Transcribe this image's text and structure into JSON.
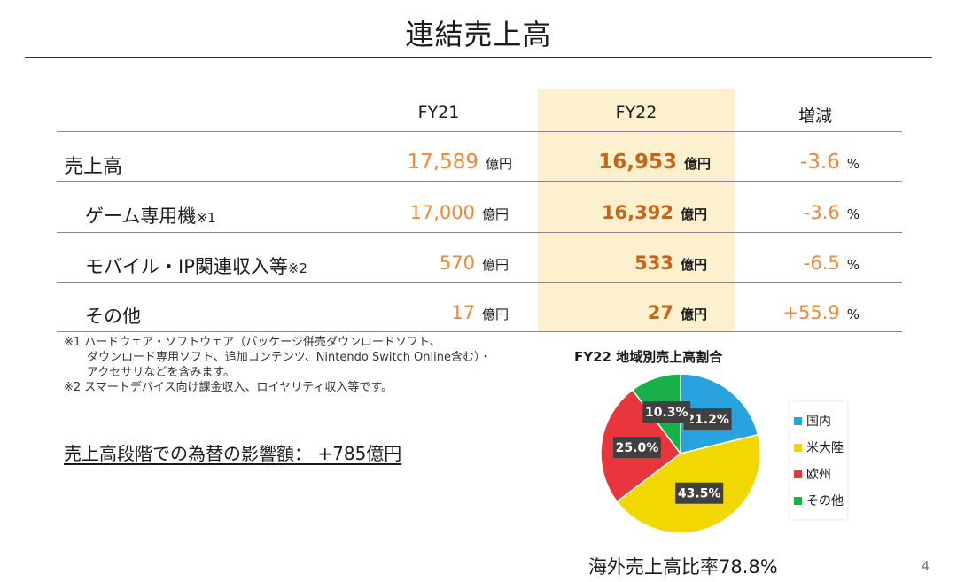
{
  "title": "連結売上高",
  "header": {
    "fy21": "FY21",
    "fy22": "FY22",
    "diff": "増減"
  },
  "rows": [
    {
      "label": "売上高",
      "note": "",
      "fy21": "17,589",
      "fy21_unit": "億円",
      "fy22": "16,953",
      "fy22_unit": "億円",
      "diff": "-3.6",
      "diff_unit": "%"
    },
    {
      "label": "ゲーム専用機",
      "note": "※1",
      "fy21": "17,000",
      "fy21_unit": "億円",
      "fy22": "16,392",
      "fy22_unit": "億円",
      "diff": "-3.6",
      "diff_unit": "%"
    },
    {
      "label": "モバイル・IP関連収入等",
      "note": "※2",
      "fy21": "570",
      "fy21_unit": "億円",
      "fy22": "533",
      "fy22_unit": "億円",
      "diff": "-6.5",
      "diff_unit": "%"
    },
    {
      "label": "その他",
      "note": "",
      "fy21": "17",
      "fy21_unit": "億円",
      "fy22": "27",
      "fy22_unit": "億円",
      "diff": "+55.9",
      "diff_unit": "%"
    }
  ],
  "notes": [
    "※1 ハードウェア・ソフトウェア（パッケージ併売ダウンロードソフト、",
    "　　ダウンロード専用ソフト、追加コンテンツ、Nintendo Switch Online含む）・",
    "　　アクセサリなどを含みます。",
    "※2 スマートデバイス向け課金収入、ロイヤリティ収入等です。"
  ],
  "fx_impact": "売上高段階での為替の影響額：  +785億円",
  "overseas_ratio": "海外売上高比率78.8%",
  "page_number": "4",
  "chart_data": {
    "type": "pie",
    "title": "FY22 地域別売上高割合",
    "slices": [
      {
        "name": "国内",
        "value": 21.2,
        "label": "21.2%",
        "color": "#29a3e0"
      },
      {
        "name": "米大陸",
        "value": 43.5,
        "label": "43.5%",
        "color": "#f0d800"
      },
      {
        "name": "欧州",
        "value": 25.0,
        "label": "25.0%",
        "color": "#e8363c"
      },
      {
        "name": "その他",
        "value": 10.3,
        "label": "10.3%",
        "color": "#18b04b"
      }
    ],
    "legend": "right",
    "start": "top",
    "direction": "clockwise"
  }
}
